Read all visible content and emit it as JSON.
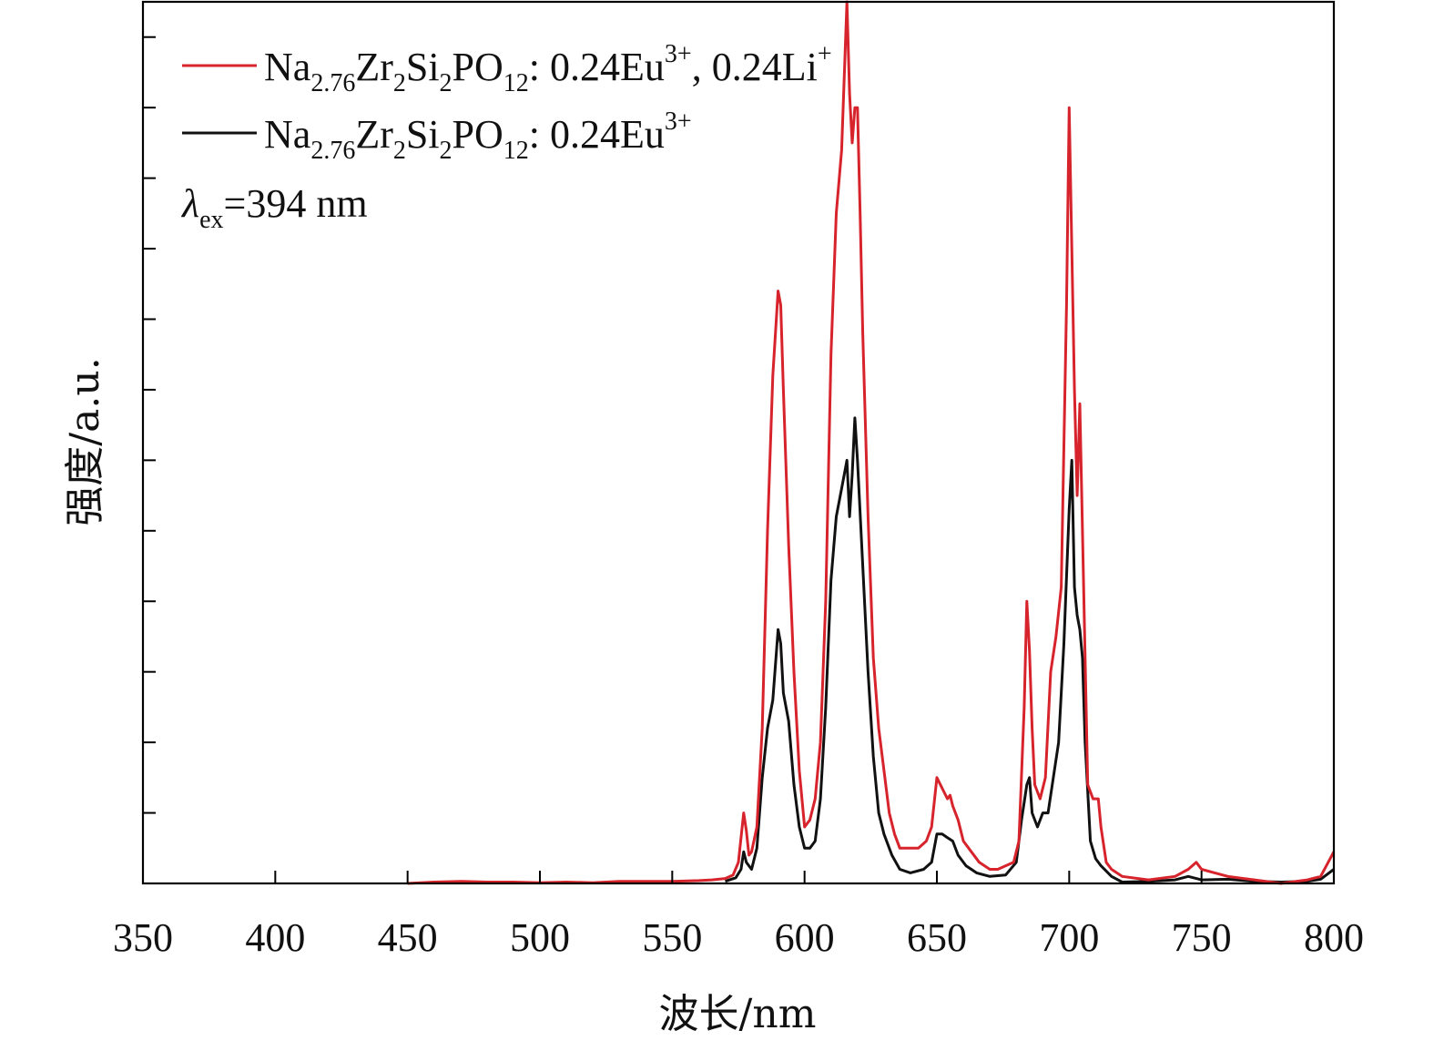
{
  "chart_data": {
    "type": "line",
    "xlabel": "波长/nm",
    "ylabel": "强度/a.u.",
    "xlim": [
      350,
      800
    ],
    "ylim": [
      0,
      1.25
    ],
    "x_ticks": [
      350,
      400,
      450,
      500,
      550,
      600,
      650,
      700,
      750,
      800
    ],
    "y_tick_labels_shown": false,
    "annotation": {
      "symbol": "λ",
      "subscript": "ex",
      "text": "=394 nm"
    },
    "series": [
      {
        "name": "Na2.76Zr2Si2PO12: 0.24Eu3+, 0.24Li+",
        "name_parts": {
          "a": "Na",
          "a_sub": "2.76",
          "b": "Zr",
          "b_sub": "2",
          "c": "Si",
          "c_sub": "2",
          "d": "PO",
          "d_sub": "12",
          "e": ": 0.24Eu",
          "e_sup": "3+",
          "f": ", 0.24Li",
          "f_sup": "+"
        },
        "color": "#d7242c",
        "points": [
          [
            450,
            0.0
          ],
          [
            460,
            0.002
          ],
          [
            470,
            0.003
          ],
          [
            480,
            0.002
          ],
          [
            490,
            0.002
          ],
          [
            500,
            0.001
          ],
          [
            510,
            0.002
          ],
          [
            520,
            0.001
          ],
          [
            530,
            0.003
          ],
          [
            540,
            0.003
          ],
          [
            550,
            0.003
          ],
          [
            560,
            0.004
          ],
          [
            565,
            0.005
          ],
          [
            570,
            0.007
          ],
          [
            573,
            0.012
          ],
          [
            575,
            0.03
          ],
          [
            577,
            0.1
          ],
          [
            578,
            0.075
          ],
          [
            579,
            0.04
          ],
          [
            580,
            0.045
          ],
          [
            582,
            0.08
          ],
          [
            584,
            0.22
          ],
          [
            586,
            0.5
          ],
          [
            588,
            0.72
          ],
          [
            590,
            0.84
          ],
          [
            591,
            0.82
          ],
          [
            592,
            0.7
          ],
          [
            594,
            0.48
          ],
          [
            596,
            0.3
          ],
          [
            598,
            0.16
          ],
          [
            600,
            0.08
          ],
          [
            602,
            0.09
          ],
          [
            604,
            0.12
          ],
          [
            606,
            0.2
          ],
          [
            608,
            0.4
          ],
          [
            610,
            0.75
          ],
          [
            612,
            0.95
          ],
          [
            614,
            1.04
          ],
          [
            616,
            1.25
          ],
          [
            617,
            1.12
          ],
          [
            618,
            1.05
          ],
          [
            619,
            1.1
          ],
          [
            620,
            1.1
          ],
          [
            621,
            0.95
          ],
          [
            622,
            0.78
          ],
          [
            624,
            0.52
          ],
          [
            626,
            0.32
          ],
          [
            628,
            0.22
          ],
          [
            630,
            0.16
          ],
          [
            632,
            0.1
          ],
          [
            634,
            0.07
          ],
          [
            636,
            0.05
          ],
          [
            638,
            0.05
          ],
          [
            640,
            0.05
          ],
          [
            643,
            0.05
          ],
          [
            646,
            0.06
          ],
          [
            648,
            0.08
          ],
          [
            650,
            0.15
          ],
          [
            652,
            0.135
          ],
          [
            654,
            0.12
          ],
          [
            655,
            0.125
          ],
          [
            656,
            0.11
          ],
          [
            658,
            0.09
          ],
          [
            660,
            0.06
          ],
          [
            663,
            0.045
          ],
          [
            666,
            0.03
          ],
          [
            670,
            0.02
          ],
          [
            673,
            0.02
          ],
          [
            676,
            0.025
          ],
          [
            679,
            0.03
          ],
          [
            681,
            0.06
          ],
          [
            683,
            0.25
          ],
          [
            684,
            0.4
          ],
          [
            685,
            0.33
          ],
          [
            686,
            0.22
          ],
          [
            687,
            0.14
          ],
          [
            689,
            0.12
          ],
          [
            691,
            0.15
          ],
          [
            693,
            0.3
          ],
          [
            695,
            0.35
          ],
          [
            697,
            0.42
          ],
          [
            699,
            0.82
          ],
          [
            700,
            1.1
          ],
          [
            701,
            0.9
          ],
          [
            702,
            0.7
          ],
          [
            703,
            0.55
          ],
          [
            704,
            0.68
          ],
          [
            705,
            0.5
          ],
          [
            707,
            0.14
          ],
          [
            709,
            0.12
          ],
          [
            710,
            0.12
          ],
          [
            711,
            0.12
          ],
          [
            712,
            0.08
          ],
          [
            714,
            0.03
          ],
          [
            716,
            0.02
          ],
          [
            720,
            0.01
          ],
          [
            730,
            0.005
          ],
          [
            740,
            0.01
          ],
          [
            745,
            0.02
          ],
          [
            748,
            0.03
          ],
          [
            750,
            0.02
          ],
          [
            755,
            0.015
          ],
          [
            760,
            0.01
          ],
          [
            770,
            0.005
          ],
          [
            780,
            0.0
          ],
          [
            790,
            0.005
          ],
          [
            795,
            0.01
          ],
          [
            800,
            0.045
          ]
        ]
      },
      {
        "name": "Na2.76Zr2Si2PO12: 0.24Eu3+",
        "name_parts": {
          "a": "Na",
          "a_sub": "2.76",
          "b": "Zr",
          "b_sub": "2",
          "c": "Si",
          "c_sub": "2",
          "d": "PO",
          "d_sub": "12",
          "e": ": 0.24Eu",
          "e_sup": "3+",
          "f": "",
          "f_sup": ""
        },
        "color": "#111111",
        "points": [
          [
            570,
            0.003
          ],
          [
            574,
            0.008
          ],
          [
            576,
            0.02
          ],
          [
            577,
            0.045
          ],
          [
            578,
            0.03
          ],
          [
            580,
            0.02
          ],
          [
            582,
            0.05
          ],
          [
            584,
            0.15
          ],
          [
            586,
            0.22
          ],
          [
            588,
            0.26
          ],
          [
            590,
            0.36
          ],
          [
            591,
            0.34
          ],
          [
            592,
            0.27
          ],
          [
            594,
            0.23
          ],
          [
            596,
            0.14
          ],
          [
            598,
            0.08
          ],
          [
            600,
            0.05
          ],
          [
            602,
            0.05
          ],
          [
            604,
            0.06
          ],
          [
            606,
            0.12
          ],
          [
            608,
            0.25
          ],
          [
            610,
            0.43
          ],
          [
            612,
            0.52
          ],
          [
            614,
            0.56
          ],
          [
            616,
            0.6
          ],
          [
            617,
            0.52
          ],
          [
            618,
            0.58
          ],
          [
            619,
            0.66
          ],
          [
            620,
            0.6
          ],
          [
            622,
            0.45
          ],
          [
            624,
            0.3
          ],
          [
            626,
            0.18
          ],
          [
            628,
            0.1
          ],
          [
            630,
            0.07
          ],
          [
            633,
            0.04
          ],
          [
            636,
            0.02
          ],
          [
            640,
            0.015
          ],
          [
            645,
            0.02
          ],
          [
            648,
            0.03
          ],
          [
            650,
            0.07
          ],
          [
            652,
            0.07
          ],
          [
            654,
            0.065
          ],
          [
            656,
            0.06
          ],
          [
            658,
            0.04
          ],
          [
            661,
            0.025
          ],
          [
            665,
            0.015
          ],
          [
            670,
            0.01
          ],
          [
            676,
            0.012
          ],
          [
            680,
            0.03
          ],
          [
            682,
            0.09
          ],
          [
            684,
            0.14
          ],
          [
            685,
            0.15
          ],
          [
            686,
            0.1
          ],
          [
            688,
            0.08
          ],
          [
            690,
            0.1
          ],
          [
            692,
            0.1
          ],
          [
            694,
            0.15
          ],
          [
            696,
            0.2
          ],
          [
            698,
            0.34
          ],
          [
            700,
            0.53
          ],
          [
            701,
            0.6
          ],
          [
            702,
            0.42
          ],
          [
            703,
            0.38
          ],
          [
            704,
            0.36
          ],
          [
            705,
            0.32
          ],
          [
            706,
            0.2
          ],
          [
            708,
            0.06
          ],
          [
            710,
            0.035
          ],
          [
            712,
            0.025
          ],
          [
            716,
            0.01
          ],
          [
            720,
            0.002
          ],
          [
            730,
            0.003
          ],
          [
            740,
            0.005
          ],
          [
            745,
            0.01
          ],
          [
            750,
            0.005
          ],
          [
            760,
            0.006
          ],
          [
            770,
            0.003
          ],
          [
            780,
            0.002
          ],
          [
            790,
            0.003
          ],
          [
            795,
            0.006
          ],
          [
            800,
            0.02
          ]
        ]
      }
    ]
  }
}
